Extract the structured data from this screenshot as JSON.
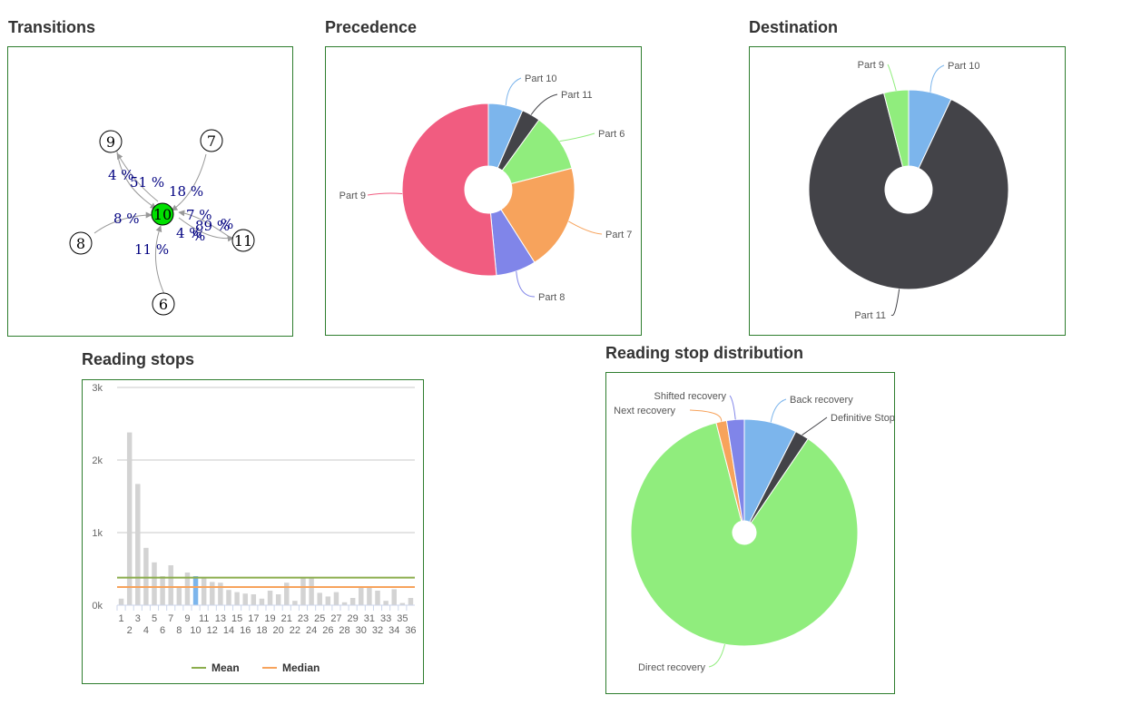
{
  "titles": {
    "transitions": "Transitions",
    "precedence": "Precedence",
    "destination": "Destination",
    "reading_stops": "Reading stops",
    "distribution": "Reading stop distribution"
  },
  "colors": {
    "blue": "#7cb5ec",
    "dark": "#434348",
    "green": "#90ed7d",
    "orange": "#f7a35c",
    "purple": "#8085e9",
    "pink": "#f15c80",
    "mean": "#8bad4c",
    "median": "#f7a35c",
    "bar": "#d3d3d3",
    "bar_highlight": "#7cb5ec",
    "frame": "#2e7d2e",
    "node_center": "#00e000"
  },
  "chart_data": [
    {
      "id": "transitions",
      "type": "graph",
      "nodes": [
        "10",
        "9",
        "7",
        "8",
        "11",
        "6"
      ],
      "center": "10",
      "edge_labels": [
        "4 %",
        "51 %",
        "18 %",
        "8 %",
        "7 %",
        "89 %",
        "%",
        "4 %",
        "11 %",
        "%"
      ]
    },
    {
      "id": "precedence",
      "type": "pie",
      "labels": [
        "Part 10",
        "Part 11",
        "Part 6",
        "Part 7",
        "Part 8",
        "Part 9"
      ],
      "values": [
        6.5,
        3.5,
        11,
        20,
        7.5,
        51.5
      ],
      "colors": [
        "#7cb5ec",
        "#434348",
        "#90ed7d",
        "#f7a35c",
        "#8085e9",
        "#f15c80"
      ]
    },
    {
      "id": "destination",
      "type": "pie",
      "labels": [
        "Part 10",
        "Part 11",
        "Part 9"
      ],
      "values": [
        7,
        89,
        4
      ],
      "colors": [
        "#7cb5ec",
        "#434348",
        "#90ed7d"
      ]
    },
    {
      "id": "reading_stops",
      "type": "bar",
      "categories": [
        "1",
        "2",
        "3",
        "4",
        "5",
        "6",
        "7",
        "8",
        "9",
        "10",
        "11",
        "12",
        "13",
        "14",
        "15",
        "16",
        "17",
        "18",
        "19",
        "20",
        "21",
        "22",
        "23",
        "24",
        "25",
        "26",
        "27",
        "28",
        "29",
        "30",
        "31",
        "32",
        "33",
        "34",
        "35",
        "36"
      ],
      "values": [
        90,
        2380,
        1670,
        790,
        590,
        400,
        550,
        250,
        450,
        400,
        370,
        320,
        310,
        210,
        180,
        160,
        150,
        90,
        200,
        150,
        310,
        60,
        380,
        380,
        170,
        120,
        180,
        40,
        100,
        250,
        250,
        200,
        60,
        220,
        30,
        100
      ],
      "highlight_index": 9,
      "ylim": [
        0,
        3000
      ],
      "yticks": [
        "0k",
        "1k",
        "2k",
        "3k"
      ],
      "ytick_values": [
        0,
        1000,
        2000,
        3000
      ],
      "mean": 380,
      "median": 250,
      "legend": [
        "Mean",
        "Median"
      ]
    },
    {
      "id": "distribution",
      "type": "pie",
      "labels": [
        "Back recovery",
        "Definitive Stop",
        "Direct recovery",
        "Next recovery",
        "Shifted recovery"
      ],
      "values": [
        7.5,
        2,
        86.5,
        1.5,
        2.5
      ],
      "colors": [
        "#7cb5ec",
        "#434348",
        "#90ed7d",
        "#f7a35c",
        "#8085e9"
      ]
    }
  ]
}
